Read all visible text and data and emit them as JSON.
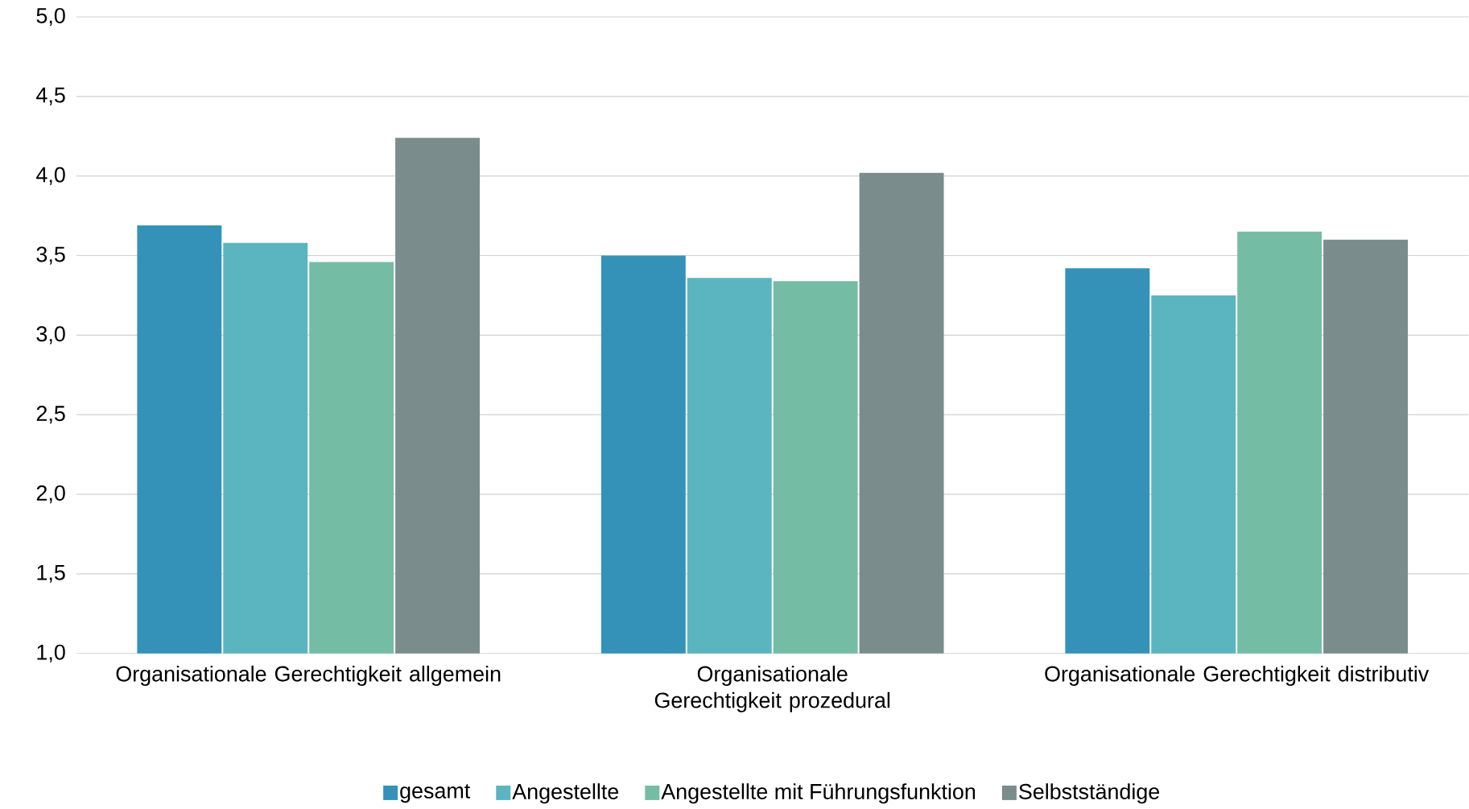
{
  "chart_data": {
    "type": "bar",
    "categories": [
      "Organisationale Gerechtigkeit allgemein",
      "Organisationale Gerechtigkeit prozedural",
      "Organisationale Gerechtigkeit distributiv"
    ],
    "series": [
      {
        "name": "gesamt",
        "color": "#3492b9",
        "values": [
          3.69,
          3.5,
          3.42
        ]
      },
      {
        "name": "Angestellte",
        "color": "#5ab5c0",
        "values": [
          3.58,
          3.36,
          3.25
        ]
      },
      {
        "name": "Angestellte mit Führungsfunktion",
        "color": "#75bca5",
        "values": [
          3.46,
          3.34,
          3.65
        ]
      },
      {
        "name": "Selbstständige",
        "color": "#7a8c8c",
        "values": [
          4.24,
          4.02,
          3.6
        ]
      }
    ],
    "ylim": [
      1,
      5
    ],
    "yticks": [
      {
        "value": 1,
        "label": "1,0"
      },
      {
        "value": 1.5,
        "label": "1,5"
      },
      {
        "value": 2,
        "label": "2,0"
      },
      {
        "value": 2.5,
        "label": "2,5"
      },
      {
        "value": 3,
        "label": "3,0"
      },
      {
        "value": 3.5,
        "label": "3,5"
      },
      {
        "value": 4,
        "label": "4,0"
      },
      {
        "value": 4.5,
        "label": "4,5"
      },
      {
        "value": 5,
        "label": "5,0"
      }
    ],
    "grid": "y",
    "legend": "bottom"
  }
}
